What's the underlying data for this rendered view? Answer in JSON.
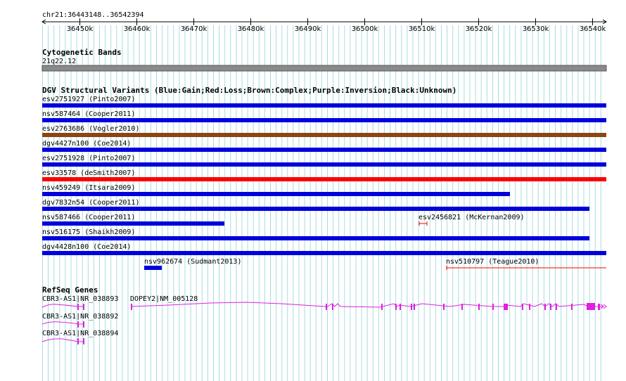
{
  "ruler": {
    "region": "chr21:36443148..36542394",
    "ticks": [
      "36450k",
      "36460k",
      "36470k",
      "36480k",
      "36490k",
      "36500k",
      "36510k",
      "36520k",
      "36530k",
      "36540k"
    ]
  },
  "cytoband": {
    "title": "Cytogenetic Bands",
    "band": "21q22.12"
  },
  "dgv": {
    "title": "DGV Structural Variants (Blue:Gain;Red:Loss;Brown:Complex;Purple:Inversion;Black:Unknown)",
    "colors": {
      "gain": "#0000dd",
      "loss": "#ff0000",
      "complex": "#8b4513"
    },
    "variants": [
      {
        "label": "esv2751927 (Pinto2007)",
        "type": "gain"
      },
      {
        "label": "nsv587464 (Cooper2011)",
        "type": "gain"
      },
      {
        "label": "esv2763686 (Vogler2010)",
        "type": "complex"
      },
      {
        "label": "dgv4427n100 (Coe2014)",
        "type": "gain"
      },
      {
        "label": "esv2751928 (Pinto2007)",
        "type": "gain"
      },
      {
        "label": "esv33578 (deSmith2007)",
        "type": "loss"
      },
      {
        "label": "nsv459249 (Itsara2009)",
        "type": "gain"
      },
      {
        "label": "dgv7832n54 (Cooper2011)",
        "type": "gain"
      },
      {
        "label": "nsv587466 (Cooper2011)",
        "type": "gain"
      },
      {
        "label": "esv2456821 (McKernan2009)",
        "type": "loss"
      },
      {
        "label": "nsv516175 (Shaikh2009)",
        "type": "gain"
      },
      {
        "label": "dgv4428n100 (Coe2014)",
        "type": "gain"
      },
      {
        "label": "nsv962674 (Sudmant2013)",
        "type": "gain"
      },
      {
        "label": "nsv510797 (Teague2010)",
        "type": "loss"
      }
    ]
  },
  "refseq": {
    "title": "RefSeq Genes",
    "color": "#e020e0",
    "genes": [
      {
        "label": "CBR3-AS1|NR_038893"
      },
      {
        "label": "DOPEY2|NM_005128"
      },
      {
        "label": "CBR3-AS1|NR_038892"
      },
      {
        "label": "CBR3-AS1|NR_038894"
      }
    ]
  }
}
